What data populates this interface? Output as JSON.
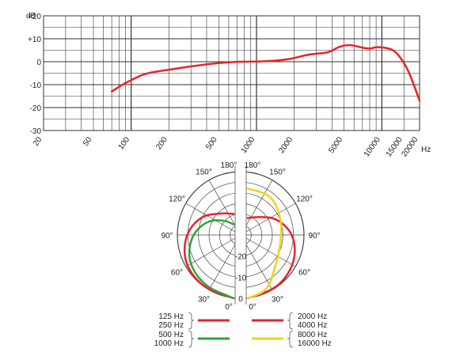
{
  "chart_data": [
    {
      "type": "line",
      "x_scale": "log",
      "xlim": [
        20,
        20000
      ],
      "ylim": [
        -30,
        20
      ],
      "y_unit_label": "dB",
      "x_unit_label": "Hz",
      "x_tick_labels": [
        "20",
        "50",
        "100",
        "200",
        "500",
        "1000",
        "2000",
        "5000",
        "10000",
        "15000",
        "20000"
      ],
      "y_tick_labels": [
        "+20",
        "+10",
        "0",
        "-10",
        "-20",
        "-30"
      ],
      "grid": true,
      "series": [
        {
          "color": "#e8232a",
          "x": [
            70,
            85,
            100,
            130,
            200,
            300,
            500,
            700,
            1000,
            1500,
            2000,
            2500,
            3000,
            3800,
            4500,
            5500,
            6500,
            8000,
            9000,
            11000,
            12500,
            14000,
            16000,
            18000,
            20000
          ],
          "y": [
            -13,
            -10,
            -8,
            -5,
            -3.5,
            -2,
            -0.5,
            0,
            0,
            0.5,
            1.5,
            3,
            3.5,
            4,
            6.5,
            7.5,
            6.5,
            5.5,
            6.5,
            6,
            5,
            2,
            -3,
            -10,
            -17
          ]
        }
      ]
    },
    {
      "type": "polar",
      "r_unit": "dB",
      "angle_labels": [
        "180°",
        "150°",
        "120°",
        "90°",
        "60°",
        "30°",
        "0°"
      ],
      "radial_labels": [
        "-20",
        "-10",
        "0"
      ],
      "rlim": [
        -30,
        0
      ],
      "legend_left": [
        {
          "labels": [
            "125 Hz",
            "250 Hz"
          ],
          "color": "#e8232a"
        },
        {
          "labels": [
            "500 Hz",
            "1000 Hz"
          ],
          "color": "#2fa33a"
        }
      ],
      "legend_right": [
        {
          "labels": [
            "2000 Hz",
            "4000 Hz"
          ],
          "color": "#e8232a"
        },
        {
          "labels": [
            "8000 Hz",
            "16000 Hz"
          ],
          "color": "#f3d21c"
        }
      ],
      "series": [
        {
          "side": "left",
          "color": "#e8232a",
          "angles": [
            0,
            30,
            60,
            90,
            120,
            150,
            180
          ],
          "db": [
            0,
            -1,
            -3,
            -7,
            -12,
            -18,
            -20
          ]
        },
        {
          "side": "left",
          "color": "#2fa33a",
          "angles": [
            0,
            30,
            60,
            90,
            120,
            150,
            180
          ],
          "db": [
            0,
            -2,
            -5,
            -10,
            -16,
            -22,
            -25
          ]
        },
        {
          "side": "right",
          "color": "#e8232a",
          "angles": [
            0,
            30,
            60,
            90,
            120,
            150,
            180
          ],
          "db": [
            0,
            -1,
            -4,
            -8,
            -14,
            -20,
            -22
          ]
        },
        {
          "side": "right",
          "color": "#f3d21c",
          "angles": [
            0,
            20,
            40,
            60,
            90,
            120,
            150,
            180
          ],
          "db": [
            0,
            -2,
            -10,
            -13,
            -14,
            -12,
            -8,
            -8
          ]
        }
      ]
    }
  ]
}
